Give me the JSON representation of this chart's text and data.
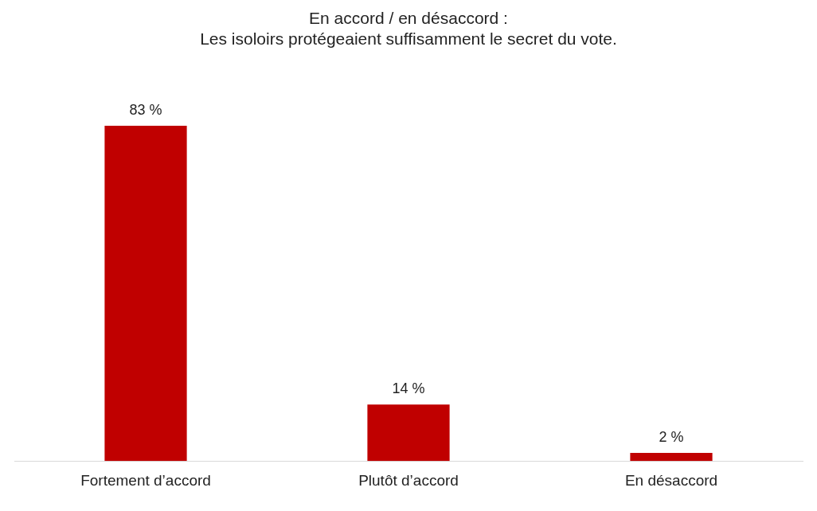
{
  "chart_data": {
    "type": "bar",
    "title": "En accord / en désaccord :\nLes isoloirs protégeaient suffisamment le secret du vote.",
    "categories": [
      "Fortement d’accord",
      "Plutôt d’accord",
      "En désaccord"
    ],
    "values": [
      83,
      14,
      2
    ],
    "value_labels": [
      "83 %",
      "14 %",
      "2 %"
    ],
    "color": "#c00000",
    "grid": false,
    "legend": false
  }
}
